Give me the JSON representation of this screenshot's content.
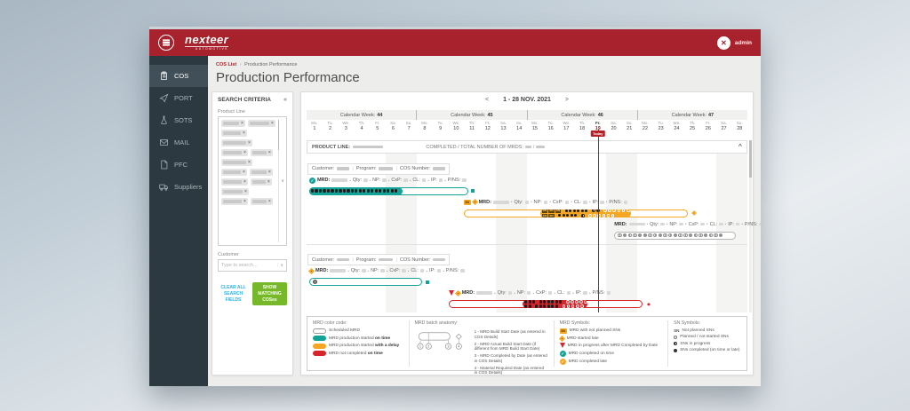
{
  "colors": {
    "brand": "#A7222C",
    "teal": "#12A296",
    "orange": "#F5A623",
    "red": "#D6262B",
    "gray": "#B5B5B5",
    "green": "#76B82A",
    "link": "#2BB3E6",
    "today": "#B32025"
  },
  "header": {
    "brand": "nexteer",
    "brand_sub": "AUTOMOTIVE",
    "user": "admin"
  },
  "sidebar": {
    "items": [
      {
        "label": "COS",
        "icon": "clipboard-icon",
        "active": true
      },
      {
        "label": "PORT",
        "icon": "send-icon",
        "active": false
      },
      {
        "label": "SOTS",
        "icon": "flask-icon",
        "active": false
      },
      {
        "label": "MAIL",
        "icon": "mail-icon",
        "active": false
      },
      {
        "label": "PFC",
        "icon": "file-icon",
        "active": false
      },
      {
        "label": "Suppliers",
        "icon": "truck-icon",
        "active": false
      }
    ]
  },
  "breadcrumb": {
    "parent": "COS List",
    "separator": "›",
    "current": "Production Performance"
  },
  "page": {
    "title": "Production Performance"
  },
  "search": {
    "title": "SEARCH CRITERIA",
    "collapse_icon": "«",
    "product_line_label": "Product Line",
    "tag_remove": "×",
    "dropdown_icon": "∨",
    "tag_widths": [
      18,
      22,
      20,
      26,
      21,
      16,
      26,
      20,
      17,
      21,
      15,
      22,
      21,
      16
    ],
    "customer_label": "Customer",
    "customer_placeholder": "Type to search...",
    "input_pipe": "|",
    "clear_button_line1": "CLEAR ALL",
    "clear_button_line2": "SEARCH FIELDS",
    "show_button_line1": "SHOW MATCHING",
    "show_button_line2": "COSes"
  },
  "gantt": {
    "nav": {
      "prev": "<",
      "range": "1 - 28 NOV. 2021",
      "next": ">"
    },
    "week_label": "Calendar Week:",
    "weeks": [
      "44",
      "45",
      "46",
      "47"
    ],
    "day_names": [
      "Mo.",
      "Tu.",
      "We.",
      "Th.",
      "Fr.",
      "Sa.",
      "Su."
    ],
    "num_days": 28,
    "today_day": 19,
    "today_label": "Today",
    "collapse_icon": "^",
    "product_line_label": "PRODUCT LINE:",
    "completed_label": "COMPLETED / TOTAL NUMBER OF MRDS:",
    "cos_labels": {
      "customer": "Customer:",
      "program": "Program:",
      "cos_number": "COS Number:"
    },
    "mrd_labels": [
      "MRD:",
      "Qty:",
      "NP:",
      "CxP:",
      "CL:",
      "IP:",
      "P/NS:"
    ],
    "separator": "•",
    "sn_badge": "SN",
    "groups": [
      {
        "product_header": true,
        "rows": [
          {
            "icons": [
              "check-circle-teal-icon"
            ],
            "bar": {
              "start": 0.6,
              "end": 36.6,
              "color": "teal",
              "fill_from": 0.6,
              "fill_to": 21.8,
              "rows_in": "fill",
              "rows": [
                "●●●●●●●●●●●●●●●●●●●●●●"
              ],
              "marker": {
                "shape": "square",
                "at": 37.8
              }
            }
          },
          {
            "icons": [
              "sn-square-orange-icon",
              "diamond-orange-icon"
            ],
            "bar": {
              "start": 35.6,
              "end": 86.5,
              "color": "orange",
              "fill_from": 53,
              "fill_to": 73.5,
              "rows_in": "fill",
              "rows": [
                "SSS ●●●●●● ◐◐ ○○○○○○○○",
                "SS ●●●●● ◐ ○○○○○○"
              ],
              "marker": {
                "shape": "diamond",
                "at": 88
              }
            }
          },
          {
            "icons": [],
            "bar": {
              "start": 69.8,
              "end": 97.4,
              "color": "gray",
              "rows_in": "outline",
              "rows": [
                "◎◎◎◎◎◎◎◎◎◎◎◎◎◎◎◎◎◎◎◎◎"
              ]
            }
          }
        ]
      },
      {
        "product_header": false,
        "rows": [
          {
            "icons": [
              "diamond-orange-icon"
            ],
            "bar": {
              "start": 0.6,
              "end": 26.2,
              "color": "teal",
              "rows_in": "outline",
              "rows": [
                "?"
              ],
              "marker": {
                "shape": "square",
                "at": 27.5
              }
            }
          },
          {
            "icons": [
              "triangle-red-icon",
              "diamond-orange-icon"
            ],
            "bar": {
              "start": 32.2,
              "end": 76.3,
              "color": "red",
              "fill_from": 49,
              "fill_to": 63.8,
              "rows_in": "fill",
              "rows": [
                "●●● ●●●●●● ○○○○○",
                "●● ●●●●●● ○○○○○"
              ],
              "marker": {
                "shape": "dot",
                "at": 77.6
              }
            }
          }
        ]
      }
    ]
  },
  "legend": {
    "color_code": {
      "title": "MRD color code:",
      "items": [
        {
          "swatch": "outline",
          "pre": "Scheduled MRD",
          "bold": ""
        },
        {
          "swatch": "teal",
          "pre": "MRD production started ",
          "bold": "on time"
        },
        {
          "swatch": "orange",
          "pre": "MRD production started ",
          "bold": "with a delay"
        },
        {
          "swatch": "red",
          "pre": "MRD not completed ",
          "bold": "on time"
        }
      ]
    },
    "anatomy": {
      "title": "MRD batch anatomy:",
      "nums": [
        "1",
        "2",
        "3",
        "4"
      ],
      "items": [
        "1 - MRD Build Start Date (as entered in COS Details)",
        "2 - MRD Actual Build Start Date (if different from MRD Build Start Date)",
        "3 - MRD Completed by Date (as entered in COS Details)",
        "4 - Material Required Date (as entered in COS Details)"
      ]
    },
    "mrd_symbols": {
      "title": "MRD Symbols:",
      "items": [
        {
          "icon": "sn-square-orange-icon",
          "text": "MRD with not planned SNs"
        },
        {
          "icon": "diamond-orange-icon",
          "text": "MRD started late"
        },
        {
          "icon": "triangle-red-icon",
          "text": "MRD in progress after MRD Completed by Date"
        },
        {
          "icon": "check-circle-teal-icon",
          "text": "MRD completed on time"
        },
        {
          "icon": "check-circle-orange-icon",
          "text": "MRD completed late"
        }
      ]
    },
    "sn_symbols": {
      "title": "SN Symbols:",
      "sn_text": "SN",
      "items": [
        {
          "icon": "sn-text",
          "text": "Not planned SNs"
        },
        {
          "icon": "ring",
          "text": "Planned / not started SNs"
        },
        {
          "icon": "half",
          "text": "SNs in progress"
        },
        {
          "icon": "dot",
          "text": "SNs completed (on time or late)"
        }
      ]
    }
  }
}
